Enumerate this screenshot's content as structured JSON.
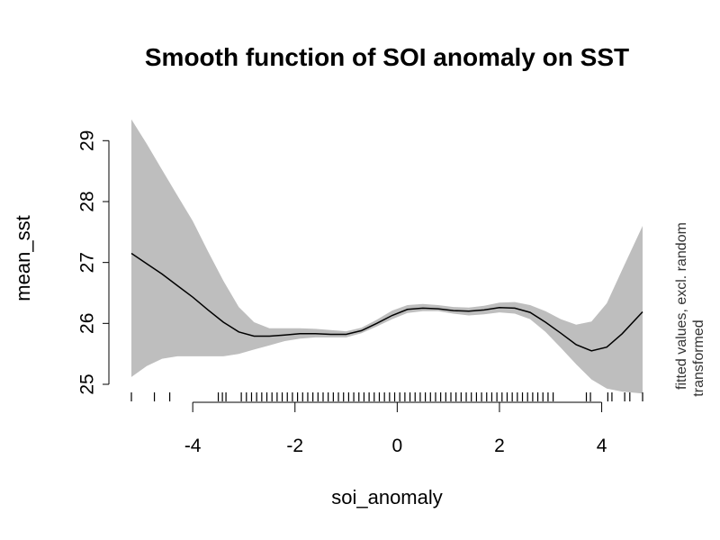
{
  "chart_data": {
    "type": "line",
    "title": "Smooth function of SOI anomaly on SST",
    "xlabel": "soi_anomaly",
    "ylabel": "mean_sst",
    "side_label_line1": "fitted values, excl. random",
    "side_label_line2": "transformed",
    "xlim": [
      -5.2,
      4.8
    ],
    "ylim": [
      25,
      29.3
    ],
    "x_ticks": [
      -4,
      -2,
      0,
      2,
      4
    ],
    "x_tick_labels": [
      "-4",
      "-2",
      "0",
      "2",
      "4"
    ],
    "y_ticks": [
      25,
      26,
      27,
      28,
      29
    ],
    "y_tick_labels": [
      "25",
      "26",
      "27",
      "28",
      "29"
    ],
    "colors": {
      "band": "#bebebe",
      "line": "#000000"
    },
    "series": [
      {
        "name": "fit",
        "x": [
          -5.2,
          -4.9,
          -4.6,
          -4.3,
          -4.0,
          -3.7,
          -3.4,
          -3.1,
          -2.8,
          -2.5,
          -2.2,
          -1.9,
          -1.6,
          -1.3,
          -1.0,
          -0.7,
          -0.4,
          -0.1,
          0.2,
          0.5,
          0.8,
          1.1,
          1.4,
          1.7,
          2.0,
          2.3,
          2.6,
          2.9,
          3.2,
          3.5,
          3.8,
          4.1,
          4.4,
          4.8
        ],
        "y": [
          27.15,
          26.98,
          26.81,
          26.62,
          26.43,
          26.22,
          26.02,
          25.86,
          25.79,
          25.79,
          25.81,
          25.83,
          25.83,
          25.82,
          25.82,
          25.88,
          26.0,
          26.13,
          26.23,
          26.25,
          26.24,
          26.21,
          26.2,
          26.22,
          26.26,
          26.25,
          26.18,
          26.02,
          25.84,
          25.65,
          25.55,
          25.61,
          25.83,
          26.19
        ]
      },
      {
        "name": "upper",
        "y": [
          29.35,
          28.95,
          28.52,
          28.1,
          27.68,
          27.18,
          26.7,
          26.27,
          26.02,
          25.92,
          25.92,
          25.92,
          25.91,
          25.89,
          25.87,
          25.93,
          26.06,
          26.21,
          26.3,
          26.32,
          26.3,
          26.27,
          26.26,
          26.29,
          26.34,
          26.35,
          26.3,
          26.2,
          26.07,
          25.98,
          26.03,
          26.33,
          26.88,
          27.6
        ]
      },
      {
        "name": "lower",
        "y": [
          25.12,
          25.3,
          25.42,
          25.46,
          25.46,
          25.46,
          25.46,
          25.5,
          25.57,
          25.64,
          25.71,
          25.75,
          25.77,
          25.77,
          25.77,
          25.84,
          25.95,
          26.07,
          26.17,
          26.2,
          26.2,
          26.16,
          26.13,
          26.15,
          26.18,
          26.16,
          26.07,
          25.86,
          25.6,
          25.33,
          25.08,
          24.93,
          24.88,
          24.85
        ]
      }
    ],
    "rug": [
      -5.2,
      -4.75,
      -4.45,
      -3.5,
      -3.42,
      -3.35,
      -3.05,
      -2.95,
      -2.85,
      -2.75,
      -2.65,
      -2.55,
      -2.45,
      -2.35,
      -2.25,
      -2.15,
      -2.05,
      -1.95,
      -1.85,
      -1.75,
      -1.65,
      -1.55,
      -1.45,
      -1.35,
      -1.25,
      -1.15,
      -1.05,
      -0.95,
      -0.85,
      -0.75,
      -0.65,
      -0.55,
      -0.45,
      -0.35,
      -0.25,
      -0.15,
      -0.05,
      0.05,
      0.15,
      0.25,
      0.35,
      0.45,
      0.55,
      0.65,
      0.75,
      0.85,
      0.95,
      1.05,
      1.15,
      1.25,
      1.35,
      1.45,
      1.55,
      1.65,
      1.75,
      1.85,
      1.95,
      2.05,
      2.15,
      2.25,
      2.35,
      2.45,
      2.55,
      2.65,
      2.75,
      2.85,
      2.95,
      3.05,
      3.7,
      3.78,
      4.12,
      4.2,
      4.45,
      4.55,
      4.8
    ]
  }
}
